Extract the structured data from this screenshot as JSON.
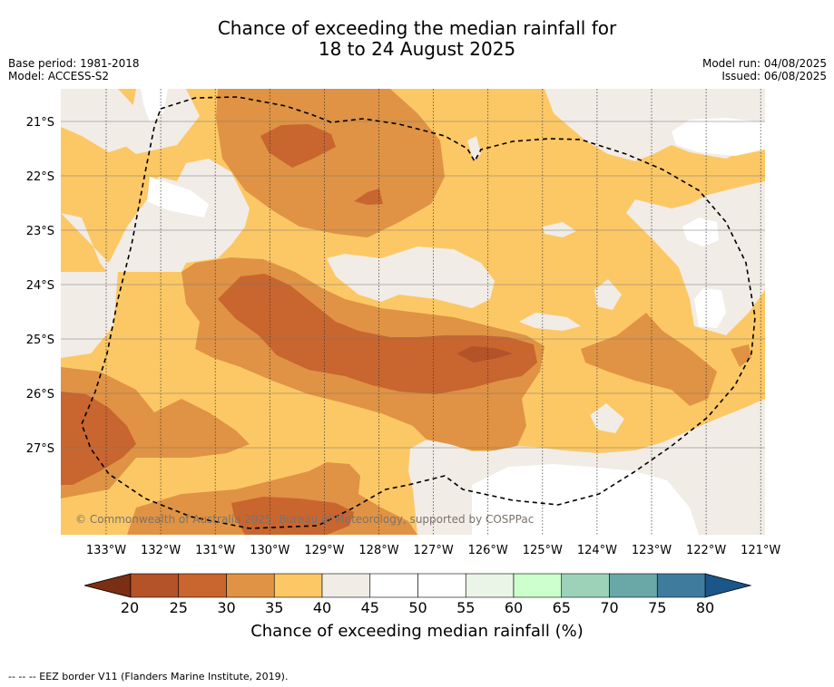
{
  "title": {
    "line1": "Chance of exceeding the median rainfall for",
    "line2": "18 to 24 August 2025"
  },
  "meta": {
    "base_period": "Base period: 1981-2018",
    "model": "Model: ACCESS-S2",
    "model_run": "Model run: 04/08/2025",
    "issued": "Issued: 06/08/2025"
  },
  "map": {
    "lat_labels": [
      "21°S",
      "22°S",
      "23°S",
      "24°S",
      "25°S",
      "26°S",
      "27°S"
    ],
    "lon_labels": [
      "133°W",
      "132°W",
      "131°W",
      "130°W",
      "129°W",
      "128°W",
      "127°W",
      "126°W",
      "125°W",
      "124°W",
      "123°W",
      "122°W",
      "121°W"
    ],
    "copyright": "© Commonwealth of Australia 2025, Bureau of Meteorology, supported by COSPPac",
    "colors": {
      "c20": "#b45228",
      "c25": "#c9652f",
      "c30": "#e09344",
      "c35": "#fcc865",
      "c40": "#f1ece6",
      "c45": "#ffffff",
      "c_lt20": "#7a2e14"
    }
  },
  "colorbar": {
    "ticks": [
      "20",
      "25",
      "30",
      "35",
      "40",
      "45",
      "50",
      "55",
      "60",
      "65",
      "70",
      "75",
      "80"
    ],
    "segment_colors": [
      "#b45228",
      "#c9652f",
      "#e09344",
      "#fcc865",
      "#f1ece6",
      "#ffffff",
      "#ffffff",
      "#eaf5e8",
      "#ccffcc",
      "#9dd2b9",
      "#6aa7a7",
      "#3f7b9c"
    ],
    "low_color": "#7a2e14",
    "high_color": "#1b568a",
    "label": "Chance of exceeding median rainfall (%)"
  },
  "footer": "--  --  -- EEZ border V11 (Flanders Marine Institute, 2019)."
}
